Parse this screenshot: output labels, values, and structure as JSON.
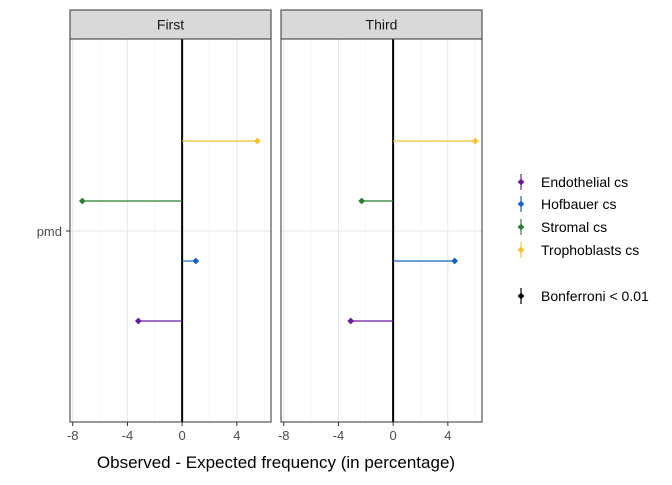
{
  "chart_data": {
    "type": "dot-and-segment",
    "xlabel": "Observed - Expected frequency (in percentage)",
    "ylabel": "",
    "y_category": "pmd",
    "xlim": [
      -8.2,
      6.5
    ],
    "x_ticks": [
      -8,
      -4,
      0,
      4
    ],
    "x_tick_labels": [
      "-8",
      "-4",
      "0",
      "4"
    ],
    "panels": [
      {
        "title": "First",
        "points": [
          {
            "series": "Endothelial cs",
            "value": -3.2
          },
          {
            "series": "Hofbauer cs",
            "value": 1.0
          },
          {
            "series": "Stromal cs",
            "value": -7.3
          },
          {
            "series": "Trophoblasts cs",
            "value": 5.5
          }
        ]
      },
      {
        "title": "Third",
        "points": [
          {
            "series": "Endothelial cs",
            "value": -3.1
          },
          {
            "series": "Hofbauer cs",
            "value": 4.5
          },
          {
            "series": "Stromal cs",
            "value": -2.3
          },
          {
            "series": "Trophoblasts cs",
            "value": 6.0
          }
        ]
      }
    ],
    "series": [
      {
        "name": "Endothelial cs",
        "color": "#6a1b9a"
      },
      {
        "name": "Hofbauer cs",
        "color": "#1565c0"
      },
      {
        "name": "Stromal cs",
        "color": "#2e7d32"
      },
      {
        "name": "Trophoblasts cs",
        "color": "#fbc02d"
      }
    ],
    "series_order_top_to_bottom": [
      "Trophoblasts cs",
      "Stromal cs",
      "Hofbauer cs",
      "Endothelial cs"
    ],
    "legend": {
      "placement": "right",
      "extra_entry": {
        "label": "Bonferroni < 0.01",
        "color": "#000000"
      }
    },
    "grid": true,
    "zero_line": true
  }
}
